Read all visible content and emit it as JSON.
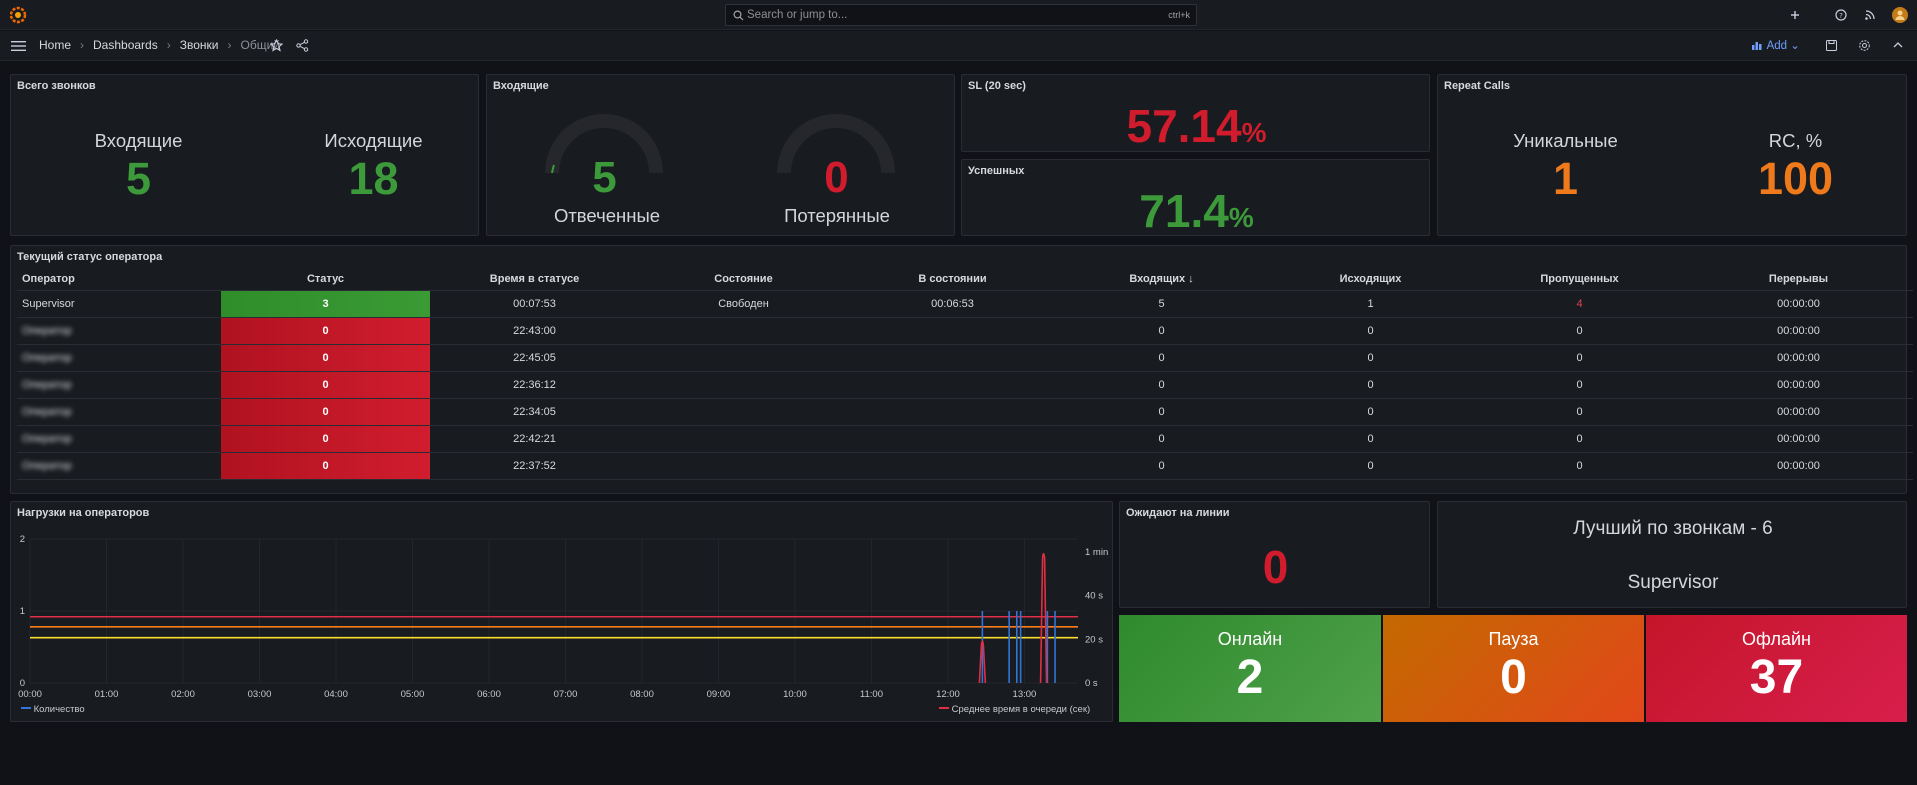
{
  "topbar": {
    "search_placeholder": "Search or jump to...",
    "search_shortcut": "ctrl+k"
  },
  "navbar": {
    "breadcrumbs": [
      "Home",
      "Dashboards",
      "Звонки",
      "Общий"
    ],
    "add_label": "Add"
  },
  "panels": {
    "total_calls": {
      "title": "Всего звонков",
      "incoming_label": "Входящие",
      "incoming_value": "5",
      "outgoing_label": "Исходящие",
      "outgoing_value": "18"
    },
    "incoming": {
      "title": "Входящие",
      "answered_label": "Отвеченные",
      "answered_value": "5",
      "lost_label": "Потерянные",
      "lost_value": "0"
    },
    "sl": {
      "title": "SL (20 sec)",
      "value": "57.14",
      "unit": "%"
    },
    "success": {
      "title": "Успешных",
      "value": "71.4",
      "unit": "%"
    },
    "repeat": {
      "title": "Repeat Calls",
      "unique_label": "Уникальные",
      "unique_value": "1",
      "rc_label": "RC, %",
      "rc_value": "100"
    },
    "operators": {
      "title": "Текущий статус оператора",
      "columns": [
        "Оператор",
        "Статус",
        "Время в статусе",
        "Состояние",
        "В состоянии",
        "Входящих",
        "Исходящих",
        "Пропущенных",
        "Перерывы"
      ],
      "sort_indicator": "↓",
      "rows": [
        {
          "name": "Supervisor",
          "status": "3",
          "time": "00:07:53",
          "state": "Свободен",
          "in_state": "00:06:53",
          "incoming": "5",
          "outgoing": "1",
          "missed": "4",
          "breaks": "00:00:00"
        },
        {
          "name": "Оператор",
          "status": "0",
          "time": "22:43:00",
          "state": "",
          "in_state": "",
          "incoming": "0",
          "outgoing": "0",
          "missed": "0",
          "breaks": "00:00:00"
        },
        {
          "name": "Оператор",
          "status": "0",
          "time": "22:45:05",
          "state": "",
          "in_state": "",
          "incoming": "0",
          "outgoing": "0",
          "missed": "0",
          "breaks": "00:00:00"
        },
        {
          "name": "Оператор",
          "status": "0",
          "time": "22:36:12",
          "state": "",
          "in_state": "",
          "incoming": "0",
          "outgoing": "0",
          "missed": "0",
          "breaks": "00:00:00"
        },
        {
          "name": "Оператор",
          "status": "0",
          "time": "22:34:05",
          "state": "",
          "in_state": "",
          "incoming": "0",
          "outgoing": "0",
          "missed": "0",
          "breaks": "00:00:00"
        },
        {
          "name": "Оператор",
          "status": "0",
          "time": "22:42:21",
          "state": "",
          "in_state": "",
          "incoming": "0",
          "outgoing": "0",
          "missed": "0",
          "breaks": "00:00:00"
        },
        {
          "name": "Оператор",
          "status": "0",
          "time": "22:37:52",
          "state": "",
          "in_state": "",
          "incoming": "0",
          "outgoing": "0",
          "missed": "0",
          "breaks": "00:00:00"
        }
      ]
    },
    "load": {
      "title": "Нагрузки на операторов",
      "legend_left": "Количество",
      "legend_right": "Среднее время в очереди (сек)"
    },
    "waiting": {
      "title": "Ожидают на линии",
      "value": "0"
    },
    "best": {
      "line1": "Лучший по звонкам - 6",
      "line2": "Supervisor"
    },
    "tiles": {
      "online_label": "Онлайн",
      "online_value": "2",
      "pause_label": "Пауза",
      "pause_value": "0",
      "offline_label": "Офлайн",
      "offline_value": "37"
    }
  },
  "chart_data": {
    "type": "line",
    "x_ticks": [
      "00:00",
      "01:00",
      "02:00",
      "03:00",
      "04:00",
      "05:00",
      "06:00",
      "07:00",
      "08:00",
      "09:00",
      "10:00",
      "11:00",
      "12:00",
      "13:00"
    ],
    "y_left_ticks": [
      "0",
      "1",
      "2"
    ],
    "y_right_ticks": [
      "0 s",
      "20 s",
      "40 s",
      "1 min"
    ],
    "ylim_left": [
      0,
      2
    ],
    "series": [
      {
        "name": "Количество",
        "color": "#3274d9",
        "spikes_x_hours": [
          12.45,
          12.8,
          12.9,
          12.95,
          13.3,
          13.4
        ]
      },
      {
        "name": "Среднее время в очереди (сек)",
        "color": "#e02f44",
        "spikes_x_hours": [
          12.45,
          13.25
        ],
        "peak_seconds": 60
      }
    ],
    "threshold_colors": [
      "#e02f44",
      "#ff7b1c",
      "#fade2a",
      "#56a64b"
    ],
    "threshold_values_left": [
      0.92,
      0.78,
      0.63
    ]
  }
}
